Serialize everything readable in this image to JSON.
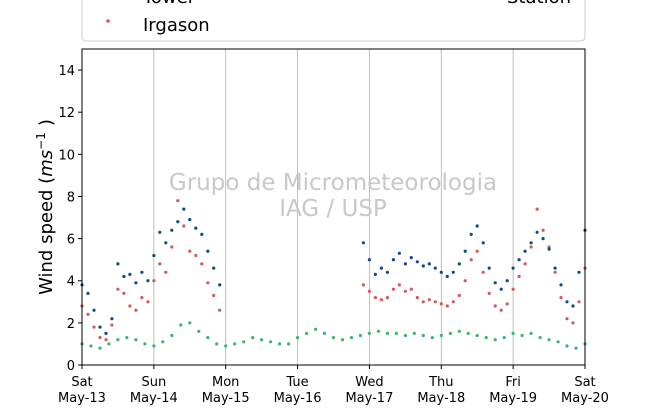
{
  "chart_data": {
    "type": "scatter",
    "ylabel": "Wind speed (ms⁻¹)",
    "ylabel_parts": {
      "main": "Wind speed (",
      "italic": "ms",
      "sup": "−1",
      "close": ")"
    },
    "ylim": [
      0,
      15
    ],
    "yticks": [
      0,
      2,
      4,
      6,
      8,
      10,
      12,
      14
    ],
    "xlim": [
      "2017-05-13 00:00",
      "2017-05-20 00:00"
    ],
    "xticks": [
      {
        "date": "2017-05-13",
        "day": "Sat",
        "date_label": "May-13"
      },
      {
        "date": "2017-05-14",
        "day": "Sun",
        "date_label": "May-14"
      },
      {
        "date": "2017-05-15",
        "day": "Mon",
        "date_label": "May-15"
      },
      {
        "date": "2017-05-16",
        "day": "Tue",
        "date_label": "May-16"
      },
      {
        "date": "2017-05-17",
        "day": "Wed",
        "date_label": "May-17"
      },
      {
        "date": "2017-05-18",
        "day": "Thu",
        "date_label": "May-18"
      },
      {
        "date": "2017-05-19",
        "day": "Fri",
        "date_label": "May-19"
      },
      {
        "date": "2017-05-20",
        "day": "Sat",
        "date_label": "May-20"
      }
    ],
    "grid": "vertical",
    "legend_placement": "top",
    "watermark": [
      "Grupo de Micrometeorologia",
      "IAG / USP"
    ],
    "series": [
      {
        "name": "Tower",
        "color": "#0d4a8a",
        "values": [
          {
            "x": "2017-05-13 00:00",
            "y": 3.8
          },
          {
            "x": "2017-05-13 02:00",
            "y": 3.4
          },
          {
            "x": "2017-05-13 04:00",
            "y": 2.6
          },
          {
            "x": "2017-05-13 06:00",
            "y": 1.8
          },
          {
            "x": "2017-05-13 08:00",
            "y": 1.5
          },
          {
            "x": "2017-05-13 10:00",
            "y": 2.2
          },
          {
            "x": "2017-05-13 12:00",
            "y": 4.8
          },
          {
            "x": "2017-05-13 14:00",
            "y": 4.2
          },
          {
            "x": "2017-05-13 16:00",
            "y": 4.3
          },
          {
            "x": "2017-05-13 18:00",
            "y": 3.9
          },
          {
            "x": "2017-05-13 20:00",
            "y": 4.4
          },
          {
            "x": "2017-05-13 22:00",
            "y": 4.0
          },
          {
            "x": "2017-05-14 00:00",
            "y": 5.2
          },
          {
            "x": "2017-05-14 02:00",
            "y": 6.3
          },
          {
            "x": "2017-05-14 04:00",
            "y": 5.8
          },
          {
            "x": "2017-05-14 06:00",
            "y": 6.4
          },
          {
            "x": "2017-05-14 08:00",
            "y": 6.8
          },
          {
            "x": "2017-05-14 10:00",
            "y": 7.4
          },
          {
            "x": "2017-05-14 12:00",
            "y": 6.9
          },
          {
            "x": "2017-05-14 14:00",
            "y": 6.5
          },
          {
            "x": "2017-05-14 16:00",
            "y": 6.2
          },
          {
            "x": "2017-05-14 18:00",
            "y": 5.4
          },
          {
            "x": "2017-05-14 20:00",
            "y": 4.6
          },
          {
            "x": "2017-05-14 22:00",
            "y": 3.8
          },
          {
            "x": "2017-05-16 22:00",
            "y": 5.8
          },
          {
            "x": "2017-05-17 00:00",
            "y": 5.0
          },
          {
            "x": "2017-05-17 02:00",
            "y": 4.3
          },
          {
            "x": "2017-05-17 04:00",
            "y": 4.6
          },
          {
            "x": "2017-05-17 06:00",
            "y": 4.4
          },
          {
            "x": "2017-05-17 08:00",
            "y": 5.0
          },
          {
            "x": "2017-05-17 10:00",
            "y": 5.3
          },
          {
            "x": "2017-05-17 12:00",
            "y": 4.8
          },
          {
            "x": "2017-05-17 14:00",
            "y": 5.1
          },
          {
            "x": "2017-05-17 16:00",
            "y": 4.9
          },
          {
            "x": "2017-05-17 18:00",
            "y": 4.7
          },
          {
            "x": "2017-05-17 20:00",
            "y": 4.8
          },
          {
            "x": "2017-05-17 22:00",
            "y": 4.6
          },
          {
            "x": "2017-05-18 00:00",
            "y": 4.4
          },
          {
            "x": "2017-05-18 02:00",
            "y": 4.2
          },
          {
            "x": "2017-05-18 04:00",
            "y": 4.4
          },
          {
            "x": "2017-05-18 06:00",
            "y": 4.8
          },
          {
            "x": "2017-05-18 08:00",
            "y": 5.4
          },
          {
            "x": "2017-05-18 10:00",
            "y": 6.2
          },
          {
            "x": "2017-05-18 12:00",
            "y": 6.6
          },
          {
            "x": "2017-05-18 14:00",
            "y": 5.8
          },
          {
            "x": "2017-05-18 16:00",
            "y": 4.6
          },
          {
            "x": "2017-05-18 18:00",
            "y": 3.9
          },
          {
            "x": "2017-05-18 20:00",
            "y": 3.6
          },
          {
            "x": "2017-05-18 22:00",
            "y": 4.0
          },
          {
            "x": "2017-05-19 00:00",
            "y": 4.6
          },
          {
            "x": "2017-05-19 02:00",
            "y": 5.0
          },
          {
            "x": "2017-05-19 04:00",
            "y": 5.4
          },
          {
            "x": "2017-05-19 06:00",
            "y": 5.8
          },
          {
            "x": "2017-05-19 08:00",
            "y": 6.3
          },
          {
            "x": "2017-05-19 10:00",
            "y": 6.0
          },
          {
            "x": "2017-05-19 12:00",
            "y": 5.5
          },
          {
            "x": "2017-05-19 14:00",
            "y": 4.6
          },
          {
            "x": "2017-05-19 16:00",
            "y": 3.8
          },
          {
            "x": "2017-05-19 18:00",
            "y": 3.0
          },
          {
            "x": "2017-05-19 20:00",
            "y": 2.8
          },
          {
            "x": "2017-05-19 22:00",
            "y": 4.4
          },
          {
            "x": "2017-05-20 00:00",
            "y": 6.4
          }
        ]
      },
      {
        "name": "Irgason",
        "color": "#cd5c5c",
        "values": [
          {
            "x": "2017-05-13 00:00",
            "y": 2.8
          },
          {
            "x": "2017-05-13 02:00",
            "y": 2.4
          },
          {
            "x": "2017-05-13 04:00",
            "y": 1.8
          },
          {
            "x": "2017-05-13 06:00",
            "y": 1.3
          },
          {
            "x": "2017-05-13 08:00",
            "y": 1.2
          },
          {
            "x": "2017-05-13 10:00",
            "y": 1.9
          },
          {
            "x": "2017-05-13 12:00",
            "y": 3.6
          },
          {
            "x": "2017-05-13 14:00",
            "y": 3.4
          },
          {
            "x": "2017-05-13 16:00",
            "y": 2.8
          },
          {
            "x": "2017-05-13 18:00",
            "y": 2.6
          },
          {
            "x": "2017-05-13 20:00",
            "y": 3.2
          },
          {
            "x": "2017-05-13 22:00",
            "y": 3.0
          },
          {
            "x": "2017-05-14 00:00",
            "y": 4.0
          },
          {
            "x": "2017-05-14 02:00",
            "y": 4.8
          },
          {
            "x": "2017-05-14 04:00",
            "y": 4.4
          },
          {
            "x": "2017-05-14 06:00",
            "y": 5.6
          },
          {
            "x": "2017-05-14 08:00",
            "y": 7.8
          },
          {
            "x": "2017-05-14 10:00",
            "y": 6.6
          },
          {
            "x": "2017-05-14 12:00",
            "y": 5.4
          },
          {
            "x": "2017-05-14 14:00",
            "y": 5.2
          },
          {
            "x": "2017-05-14 16:00",
            "y": 4.8
          },
          {
            "x": "2017-05-14 18:00",
            "y": 3.9
          },
          {
            "x": "2017-05-14 20:00",
            "y": 3.3
          },
          {
            "x": "2017-05-14 22:00",
            "y": 2.6
          },
          {
            "x": "2017-05-16 22:00",
            "y": 3.8
          },
          {
            "x": "2017-05-17 00:00",
            "y": 3.5
          },
          {
            "x": "2017-05-17 02:00",
            "y": 3.2
          },
          {
            "x": "2017-05-17 04:00",
            "y": 3.1
          },
          {
            "x": "2017-05-17 06:00",
            "y": 3.2
          },
          {
            "x": "2017-05-17 08:00",
            "y": 3.6
          },
          {
            "x": "2017-05-17 10:00",
            "y": 3.8
          },
          {
            "x": "2017-05-17 12:00",
            "y": 3.5
          },
          {
            "x": "2017-05-17 14:00",
            "y": 3.6
          },
          {
            "x": "2017-05-17 16:00",
            "y": 3.2
          },
          {
            "x": "2017-05-17 18:00",
            "y": 3.0
          },
          {
            "x": "2017-05-17 20:00",
            "y": 3.1
          },
          {
            "x": "2017-05-17 22:00",
            "y": 3.0
          },
          {
            "x": "2017-05-18 00:00",
            "y": 2.9
          },
          {
            "x": "2017-05-18 02:00",
            "y": 2.8
          },
          {
            "x": "2017-05-18 04:00",
            "y": 3.0
          },
          {
            "x": "2017-05-18 06:00",
            "y": 3.3
          },
          {
            "x": "2017-05-18 08:00",
            "y": 4.0
          },
          {
            "x": "2017-05-18 10:00",
            "y": 5.0
          },
          {
            "x": "2017-05-18 12:00",
            "y": 5.4
          },
          {
            "x": "2017-05-18 14:00",
            "y": 4.4
          },
          {
            "x": "2017-05-18 16:00",
            "y": 3.4
          },
          {
            "x": "2017-05-18 18:00",
            "y": 2.8
          },
          {
            "x": "2017-05-18 20:00",
            "y": 2.6
          },
          {
            "x": "2017-05-18 22:00",
            "y": 2.9
          },
          {
            "x": "2017-05-19 00:00",
            "y": 3.6
          },
          {
            "x": "2017-05-19 02:00",
            "y": 4.2
          },
          {
            "x": "2017-05-19 04:00",
            "y": 4.8
          },
          {
            "x": "2017-05-19 06:00",
            "y": 5.6
          },
          {
            "x": "2017-05-19 08:00",
            "y": 7.4
          },
          {
            "x": "2017-05-19 10:00",
            "y": 6.4
          },
          {
            "x": "2017-05-19 12:00",
            "y": 5.6
          },
          {
            "x": "2017-05-19 14:00",
            "y": 4.4
          },
          {
            "x": "2017-05-19 16:00",
            "y": 3.2
          },
          {
            "x": "2017-05-19 18:00",
            "y": 2.2
          },
          {
            "x": "2017-05-19 20:00",
            "y": 2.0
          },
          {
            "x": "2017-05-19 22:00",
            "y": 3.0
          },
          {
            "x": "2017-05-20 00:00",
            "y": 4.6
          }
        ]
      },
      {
        "name": "Station",
        "color": "#3cb371",
        "values": [
          {
            "x": "2017-05-13 00:00",
            "y": 1.0
          },
          {
            "x": "2017-05-13 03:00",
            "y": 0.9
          },
          {
            "x": "2017-05-13 06:00",
            "y": 0.8
          },
          {
            "x": "2017-05-13 09:00",
            "y": 1.0
          },
          {
            "x": "2017-05-13 12:00",
            "y": 1.2
          },
          {
            "x": "2017-05-13 15:00",
            "y": 1.3
          },
          {
            "x": "2017-05-13 18:00",
            "y": 1.2
          },
          {
            "x": "2017-05-13 21:00",
            "y": 1.0
          },
          {
            "x": "2017-05-14 00:00",
            "y": 0.9
          },
          {
            "x": "2017-05-14 03:00",
            "y": 1.1
          },
          {
            "x": "2017-05-14 06:00",
            "y": 1.4
          },
          {
            "x": "2017-05-14 09:00",
            "y": 1.9
          },
          {
            "x": "2017-05-14 12:00",
            "y": 2.0
          },
          {
            "x": "2017-05-14 15:00",
            "y": 1.6
          },
          {
            "x": "2017-05-14 18:00",
            "y": 1.3
          },
          {
            "x": "2017-05-14 21:00",
            "y": 1.0
          },
          {
            "x": "2017-05-15 00:00",
            "y": 0.9
          },
          {
            "x": "2017-05-15 03:00",
            "y": 1.0
          },
          {
            "x": "2017-05-15 06:00",
            "y": 1.1
          },
          {
            "x": "2017-05-15 09:00",
            "y": 1.3
          },
          {
            "x": "2017-05-15 12:00",
            "y": 1.2
          },
          {
            "x": "2017-05-15 15:00",
            "y": 1.1
          },
          {
            "x": "2017-05-15 18:00",
            "y": 1.0
          },
          {
            "x": "2017-05-15 21:00",
            "y": 1.0
          },
          {
            "x": "2017-05-16 00:00",
            "y": 1.3
          },
          {
            "x": "2017-05-16 03:00",
            "y": 1.5
          },
          {
            "x": "2017-05-16 06:00",
            "y": 1.7
          },
          {
            "x": "2017-05-16 09:00",
            "y": 1.5
          },
          {
            "x": "2017-05-16 12:00",
            "y": 1.3
          },
          {
            "x": "2017-05-16 15:00",
            "y": 1.2
          },
          {
            "x": "2017-05-16 18:00",
            "y": 1.3
          },
          {
            "x": "2017-05-16 21:00",
            "y": 1.4
          },
          {
            "x": "2017-05-17 00:00",
            "y": 1.5
          },
          {
            "x": "2017-05-17 03:00",
            "y": 1.6
          },
          {
            "x": "2017-05-17 06:00",
            "y": 1.5
          },
          {
            "x": "2017-05-17 09:00",
            "y": 1.5
          },
          {
            "x": "2017-05-17 12:00",
            "y": 1.4
          },
          {
            "x": "2017-05-17 15:00",
            "y": 1.5
          },
          {
            "x": "2017-05-17 18:00",
            "y": 1.4
          },
          {
            "x": "2017-05-17 21:00",
            "y": 1.3
          },
          {
            "x": "2017-05-18 00:00",
            "y": 1.4
          },
          {
            "x": "2017-05-18 03:00",
            "y": 1.5
          },
          {
            "x": "2017-05-18 06:00",
            "y": 1.6
          },
          {
            "x": "2017-05-18 09:00",
            "y": 1.5
          },
          {
            "x": "2017-05-18 12:00",
            "y": 1.4
          },
          {
            "x": "2017-05-18 15:00",
            "y": 1.3
          },
          {
            "x": "2017-05-18 18:00",
            "y": 1.2
          },
          {
            "x": "2017-05-18 21:00",
            "y": 1.3
          },
          {
            "x": "2017-05-19 00:00",
            "y": 1.5
          },
          {
            "x": "2017-05-19 03:00",
            "y": 1.4
          },
          {
            "x": "2017-05-19 06:00",
            "y": 1.5
          },
          {
            "x": "2017-05-19 09:00",
            "y": 1.3
          },
          {
            "x": "2017-05-19 12:00",
            "y": 1.2
          },
          {
            "x": "2017-05-19 15:00",
            "y": 1.1
          },
          {
            "x": "2017-05-19 18:00",
            "y": 0.9
          },
          {
            "x": "2017-05-19 21:00",
            "y": 0.8
          },
          {
            "x": "2017-05-20 00:00",
            "y": 1.0
          }
        ]
      }
    ]
  }
}
